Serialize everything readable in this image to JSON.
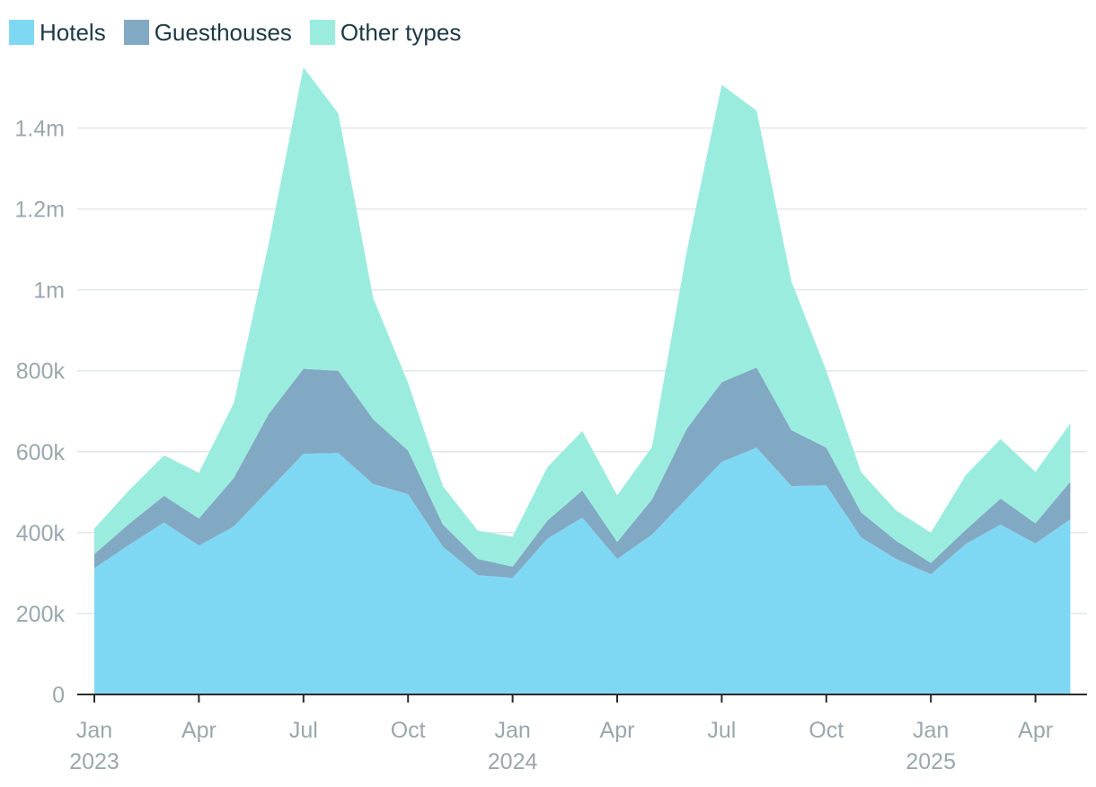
{
  "legend": [
    {
      "label": "Hotels",
      "color": "#7fd8f3"
    },
    {
      "label": "Guesthouses",
      "color": "#82a9c4"
    },
    {
      "label": "Other types",
      "color": "#9aecdf"
    }
  ],
  "chart_data": {
    "type": "area",
    "stacked": true,
    "title": "",
    "xlabel": "",
    "ylabel": "",
    "x": [
      "2023-01",
      "2023-02",
      "2023-03",
      "2023-04",
      "2023-05",
      "2023-06",
      "2023-07",
      "2023-08",
      "2023-09",
      "2023-10",
      "2023-11",
      "2023-12",
      "2024-01",
      "2024-02",
      "2024-03",
      "2024-04",
      "2024-05",
      "2024-06",
      "2024-07",
      "2024-08",
      "2024-09",
      "2024-10",
      "2024-11",
      "2024-12",
      "2025-01",
      "2025-02",
      "2025-03",
      "2025-04",
      "2025-05"
    ],
    "series": [
      {
        "name": "Hotels",
        "color": "#7fd8f3",
        "values": [
          312000,
          370000,
          425000,
          368000,
          415000,
          505000,
          595000,
          597000,
          520000,
          495000,
          365000,
          295000,
          288000,
          385000,
          437000,
          335000,
          395000,
          485000,
          575000,
          610000,
          515000,
          517000,
          388000,
          335000,
          297000,
          372000,
          420000,
          373000,
          433000
        ]
      },
      {
        "name": "Guesthouses",
        "color": "#82a9c4",
        "values": [
          35000,
          52000,
          66000,
          67000,
          120000,
          188000,
          210000,
          203000,
          160000,
          108000,
          55000,
          40000,
          28000,
          45000,
          67000,
          42000,
          87000,
          172000,
          197000,
          198000,
          138000,
          93000,
          62000,
          45000,
          28000,
          35000,
          64000,
          50000,
          93000
        ]
      },
      {
        "name": "Other types",
        "color": "#9aecdf",
        "values": [
          63000,
          83000,
          100000,
          113000,
          185000,
          420000,
          745000,
          636000,
          300000,
          167000,
          95000,
          70000,
          74000,
          132000,
          147000,
          115000,
          130000,
          440000,
          735000,
          635000,
          368000,
          190000,
          99000,
          75000,
          75000,
          135000,
          147000,
          127000,
          144000
        ]
      }
    ],
    "ylim": [
      0,
      1550000
    ],
    "yticks": [
      {
        "value": 0,
        "label": "0"
      },
      {
        "value": 200000,
        "label": "200k"
      },
      {
        "value": 400000,
        "label": "400k"
      },
      {
        "value": 600000,
        "label": "600k"
      },
      {
        "value": 800000,
        "label": "800k"
      },
      {
        "value": 1000000,
        "label": "1m"
      },
      {
        "value": 1200000,
        "label": "1.2m"
      },
      {
        "value": 1400000,
        "label": "1.4m"
      }
    ],
    "xticks": [
      {
        "x": "2023-01",
        "label": "Jan",
        "year": "2023"
      },
      {
        "x": "2023-04",
        "label": "Apr"
      },
      {
        "x": "2023-07",
        "label": "Jul"
      },
      {
        "x": "2023-10",
        "label": "Oct"
      },
      {
        "x": "2024-01",
        "label": "Jan",
        "year": "2024"
      },
      {
        "x": "2024-04",
        "label": "Apr"
      },
      {
        "x": "2024-07",
        "label": "Jul"
      },
      {
        "x": "2024-10",
        "label": "Oct"
      },
      {
        "x": "2025-01",
        "label": "Jan",
        "year": "2025"
      },
      {
        "x": "2025-04",
        "label": "Apr"
      }
    ],
    "grid": true,
    "legend_position": "top-left"
  }
}
